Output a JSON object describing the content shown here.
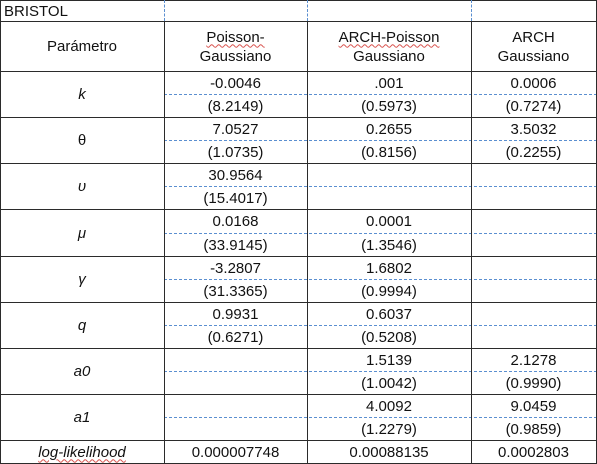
{
  "title": "BRISTOL",
  "headers": {
    "param": "Parámetro",
    "col1_line1": "Poisson-",
    "col1_line2": "Gaussiano",
    "col2_line1": "ARCH-Poisson",
    "col2_line2": "Gaussiano",
    "col3_line1": "ARCH",
    "col3_line2": "Gaussiano"
  },
  "rows": [
    {
      "param": "k",
      "pg_est": "-0.0046",
      "pg_se": "(8.2149)",
      "apg_est": ".001",
      "apg_se": "(0.5973)",
      "ag_est": "0.0006",
      "ag_se": "(0.7274)"
    },
    {
      "param": "θ",
      "pg_est": "7.0527",
      "pg_se": "(1.0735)",
      "apg_est": "0.2655",
      "apg_se": "(0.8156)",
      "ag_est": "3.5032",
      "ag_se": "(0.2255)"
    },
    {
      "param": "υ",
      "pg_est": "30.9564",
      "pg_se": "(15.4017)",
      "apg_est": "",
      "apg_se": "",
      "ag_est": "",
      "ag_se": ""
    },
    {
      "param": "μ",
      "pg_est": "0.0168",
      "pg_se": "(33.9145)",
      "apg_est": "0.0001",
      "apg_se": "(1.3546)",
      "ag_est": "",
      "ag_se": ""
    },
    {
      "param": "γ",
      "pg_est": "-3.2807",
      "pg_se": "(31.3365)",
      "apg_est": "1.6802",
      "apg_se": "(0.9994)",
      "ag_est": "",
      "ag_se": ""
    },
    {
      "param": "q",
      "pg_est": "0.9931",
      "pg_se": "(0.6271)",
      "apg_est": "0.6037",
      "apg_se": "(0.5208)",
      "ag_est": "",
      "ag_se": ""
    },
    {
      "param": "a0",
      "pg_est": "",
      "pg_se": "",
      "apg_est": "1.5139",
      "apg_se": "(1.0042)",
      "ag_est": "2.1278",
      "ag_se": "(0.9990)"
    },
    {
      "param": "a1",
      "pg_est": "",
      "pg_se": "",
      "apg_est": "4.0092",
      "apg_se": "(1.2279)",
      "ag_est": "9.0459",
      "ag_se": "(0.9859)"
    }
  ],
  "loglik": {
    "label": "log-likelihood",
    "pg": "0.000007748",
    "apg": "0.00088135",
    "ag": "0.0002803"
  }
}
